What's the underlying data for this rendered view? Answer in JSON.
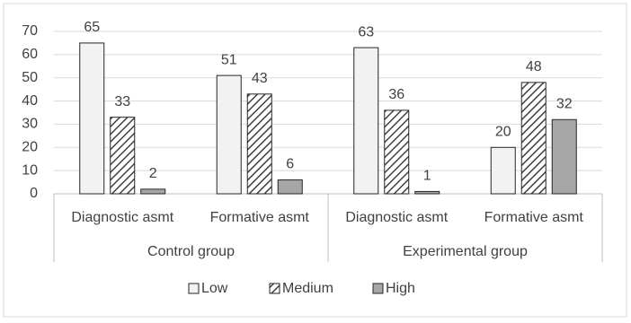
{
  "chart_data": {
    "type": "bar",
    "category_groups": [
      {
        "label": "Control group",
        "categories": [
          "Diagnostic asmt",
          "Formative asmt"
        ]
      },
      {
        "label": "Experimental group",
        "categories": [
          "Diagnostic asmt",
          "Formative asmt"
        ]
      }
    ],
    "series": [
      {
        "name": "Low",
        "color": "#f2f2f2",
        "values": [
          65,
          51,
          63,
          20
        ]
      },
      {
        "name": "Medium",
        "color": "#ffffff",
        "hatch": true,
        "values": [
          33,
          43,
          36,
          48
        ]
      },
      {
        "name": "High",
        "color": "#a6a6a6",
        "values": [
          2,
          6,
          1,
          32
        ]
      }
    ],
    "ylim": [
      0,
      70
    ],
    "yticks": [
      0,
      10,
      20,
      30,
      40,
      50,
      60,
      70
    ],
    "grid": true,
    "legend": "bottom"
  }
}
